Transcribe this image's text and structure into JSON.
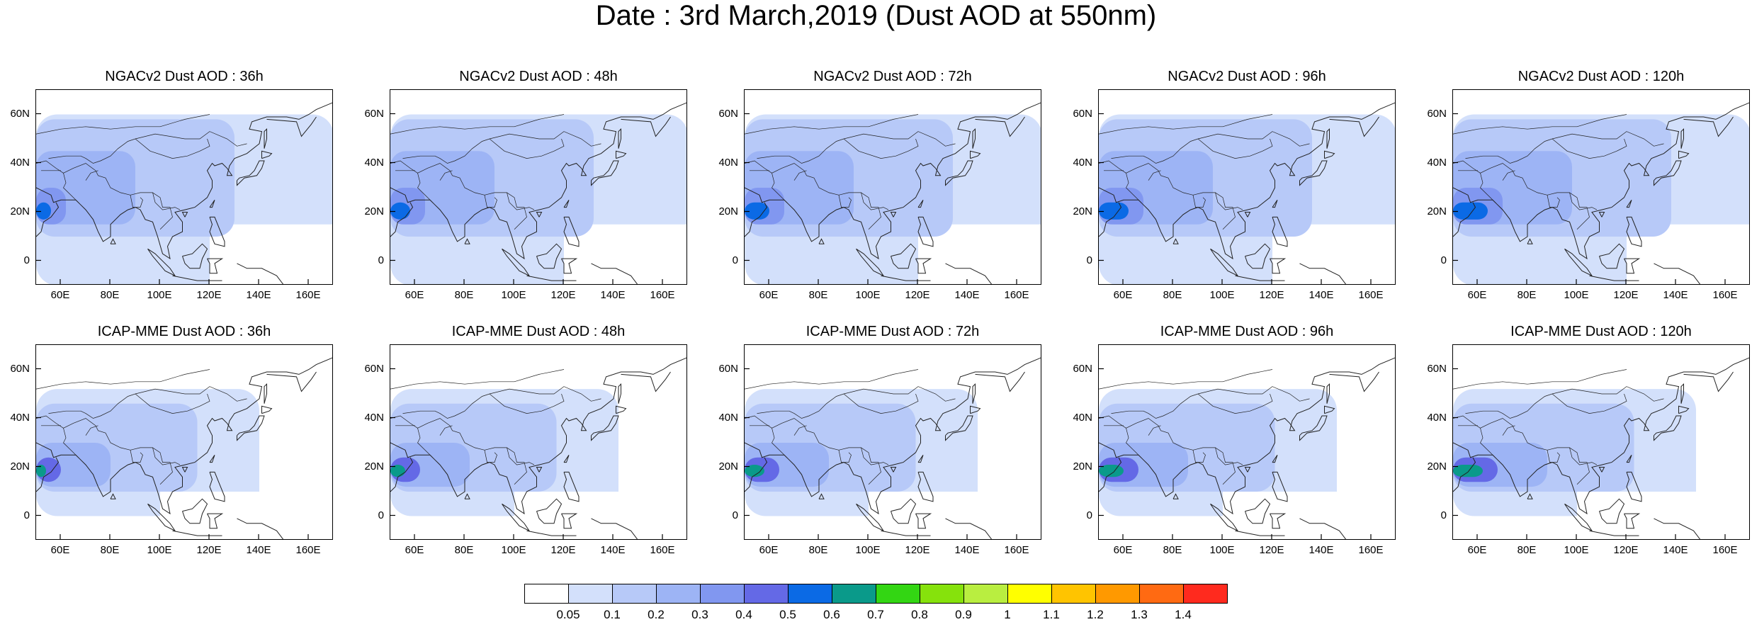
{
  "figure": {
    "title": "Date : 3rd March,2019 (Dust AOD at 550nm)"
  },
  "map_axes": {
    "y_tick_labels": [
      "60N",
      "40N",
      "20N",
      "0"
    ],
    "y_tick_values": [
      60,
      40,
      20,
      0
    ],
    "x_tick_labels": [
      "60E",
      "80E",
      "100E",
      "120E",
      "140E",
      "160E"
    ],
    "x_tick_values": [
      60,
      80,
      100,
      120,
      140,
      160
    ],
    "lon_range": [
      50,
      170
    ],
    "lat_range": [
      -10,
      70
    ],
    "projection": "cylindrical equidistant",
    "basemap": "coastlines and country borders"
  },
  "panels": [
    {
      "title": "NGACv2 Dust AOD : 36h",
      "model": "NGACv2",
      "forecast_hour": 36
    },
    {
      "title": "NGACv2 Dust AOD : 48h",
      "model": "NGACv2",
      "forecast_hour": 48
    },
    {
      "title": "NGACv2 Dust AOD : 72h",
      "model": "NGACv2",
      "forecast_hour": 72
    },
    {
      "title": "NGACv2 Dust AOD : 96h",
      "model": "NGACv2",
      "forecast_hour": 96
    },
    {
      "title": "NGACv2 Dust AOD : 120h",
      "model": "NGACv2",
      "forecast_hour": 120
    },
    {
      "title": "ICAP-MME Dust AOD : 36h",
      "model": "ICAP-MME",
      "forecast_hour": 36
    },
    {
      "title": "ICAP-MME Dust AOD : 48h",
      "model": "ICAP-MME",
      "forecast_hour": 48
    },
    {
      "title": "ICAP-MME Dust AOD : 72h",
      "model": "ICAP-MME",
      "forecast_hour": 72
    },
    {
      "title": "ICAP-MME Dust AOD : 96h",
      "model": "ICAP-MME",
      "forecast_hour": 96
    },
    {
      "title": "ICAP-MME Dust AOD : 120h",
      "model": "ICAP-MME",
      "forecast_hour": 120
    }
  ],
  "colorbar": {
    "labels": [
      "0.05",
      "0.1",
      "0.2",
      "0.3",
      "0.4",
      "0.5",
      "0.6",
      "0.7",
      "0.8",
      "0.9",
      "1",
      "1.1",
      "1.2",
      "1.3",
      "1.4"
    ],
    "colors": [
      "#ffffff",
      "#d3e0fb",
      "#b7c9f8",
      "#9db4f5",
      "#8197f0",
      "#6469e6",
      "#0b6ae5",
      "#0a9a8a",
      "#33d613",
      "#86e20c",
      "#b9ee40",
      "#ffff00",
      "#ffc400",
      "#ff9900",
      "#ff6a12",
      "#ff2a1e"
    ]
  }
}
